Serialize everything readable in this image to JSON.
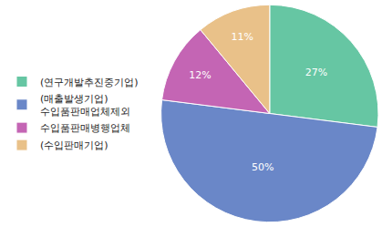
{
  "chart_data": {
    "type": "pie",
    "categories": [
      "(연구개발추진중기업)",
      "(매출발생기업)\n수입품판매업체제외",
      "수입품판매병행업체",
      "(수입판매기업)"
    ],
    "values": [
      27,
      50,
      12,
      11
    ],
    "value_labels": [
      "27%",
      "50%",
      "12%",
      "11%"
    ],
    "colors": [
      "#66c6a3",
      "#6a87c8",
      "#c465b4",
      "#e9c189"
    ],
    "data_labels": true,
    "legend": "left"
  }
}
